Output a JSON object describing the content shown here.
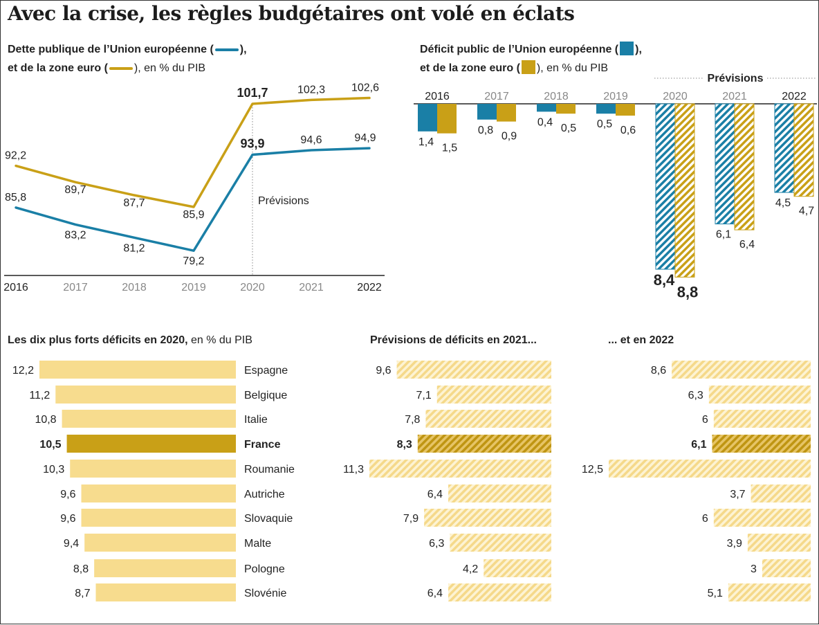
{
  "title": "Avec la crise, les règles budgétaires ont volé en éclats",
  "colors": {
    "ue": "#1a7fa6",
    "zone_euro": "#c9a017",
    "bar_light": "#f7dc8e",
    "bar_france": "#c9a017"
  },
  "chart_data": [
    {
      "type": "line",
      "subtitle_part1": "Dette publique de l’Union européenne (",
      "subtitle_part2": "),",
      "subtitle_part3": "et de la zone euro (",
      "subtitle_part4": "), en % du PIB",
      "x": [
        "2016",
        "2017",
        "2018",
        "2019",
        "2020",
        "2021",
        "2022"
      ],
      "series": [
        {
          "key": "zone_euro",
          "values": [
            92.2,
            89.7,
            87.7,
            85.9,
            101.7,
            102.3,
            102.6
          ],
          "labels": [
            "92,2",
            "89,7",
            "87,7",
            "85,9",
            "101,7",
            "102,3",
            "102,6"
          ]
        },
        {
          "key": "ue",
          "values": [
            85.8,
            83.2,
            81.2,
            79.2,
            93.9,
            94.6,
            94.9
          ],
          "labels": [
            "85,8",
            "83,2",
            "81,2",
            "79,2",
            "93,9",
            "94,6",
            "94,9"
          ]
        }
      ],
      "annotation": "Prévisions"
    },
    {
      "type": "bar",
      "subtitle_part1": "Déficit public de l’Union européenne (",
      "subtitle_part2": "),",
      "subtitle_part3": "et de la zone euro (",
      "subtitle_part4": "), en % du PIB",
      "categories": [
        "2016",
        "2017",
        "2018",
        "2019",
        "2020",
        "2021",
        "2022"
      ],
      "forecast_label": "Prévisions",
      "series": [
        {
          "key": "ue",
          "values": [
            1.4,
            0.8,
            0.4,
            0.5,
            8.4,
            6.1,
            4.5
          ],
          "labels": [
            "1,4",
            "0,8",
            "0,4",
            "0,5",
            "8,4",
            "6,1",
            "4,5"
          ]
        },
        {
          "key": "zone_euro",
          "values": [
            1.5,
            0.9,
            0.5,
            0.6,
            8.8,
            6.4,
            4.7
          ],
          "labels": [
            "1,5",
            "0,9",
            "0,5",
            "0,6",
            "8,8",
            "6,4",
            "4,7"
          ]
        }
      ]
    },
    {
      "type": "bar",
      "title_bold": "Les dix plus forts déficits en 2020,",
      "title_rest": " en % du PIB",
      "categories": [
        "Espagne",
        "Belgique",
        "Italie",
        "France",
        "Roumanie",
        "Autriche",
        "Slovaquie",
        "Malte",
        "Pologne",
        "Slovénie"
      ],
      "values": [
        12.2,
        11.2,
        10.8,
        10.5,
        10.3,
        9.6,
        9.6,
        9.4,
        8.8,
        8.7
      ],
      "labels": [
        "12,2",
        "11,2",
        "10,8",
        "10,5",
        "10,3",
        "9,6",
        "9,6",
        "9,4",
        "8,8",
        "8,7"
      ],
      "highlight": "France"
    },
    {
      "type": "bar",
      "title_bold": "Prévisions de déficits en 2021...",
      "categories": [
        "Espagne",
        "Belgique",
        "Italie",
        "France",
        "Roumanie",
        "Autriche",
        "Slovaquie",
        "Malte",
        "Pologne",
        "Slovénie"
      ],
      "values": [
        9.6,
        7.1,
        7.8,
        8.3,
        11.3,
        6.4,
        7.9,
        6.3,
        4.2,
        6.4
      ],
      "labels": [
        "9,6",
        "7,1",
        "7,8",
        "8,3",
        "11,3",
        "6,4",
        "7,9",
        "6,3",
        "4,2",
        "6,4"
      ],
      "highlight": "France"
    },
    {
      "type": "bar",
      "title_bold": "... et en  2022",
      "categories": [
        "Espagne",
        "Belgique",
        "Italie",
        "France",
        "Roumanie",
        "Autriche",
        "Slovaquie",
        "Malte",
        "Pologne",
        "Slovénie"
      ],
      "values": [
        8.6,
        6.3,
        6.0,
        6.1,
        12.5,
        3.7,
        6.0,
        3.9,
        3.0,
        5.1
      ],
      "labels": [
        "8,6",
        "6,3",
        "6",
        "6,1",
        "12,5",
        "3,7",
        "6",
        "3,9",
        "3",
        "5,1"
      ],
      "highlight": "France"
    }
  ]
}
